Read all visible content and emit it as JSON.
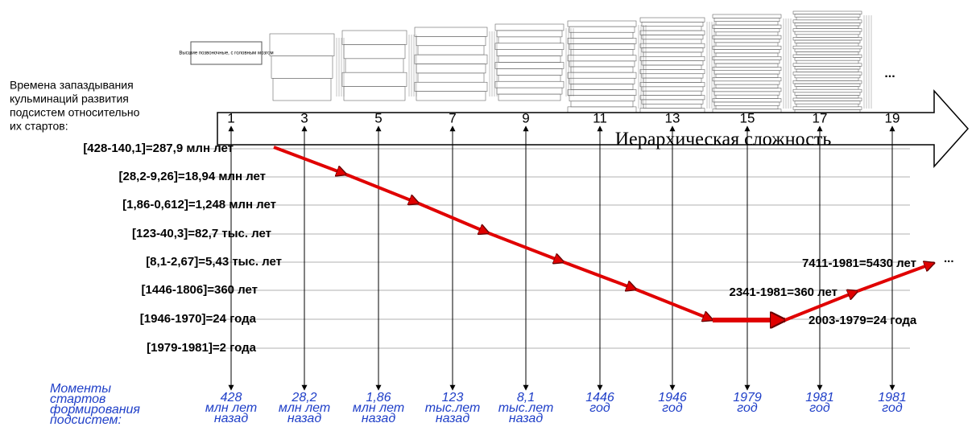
{
  "top_label": "Высшие позвоночные, с головным мозгом",
  "ellipsis_top": "...",
  "left_heading": [
    "Времена запаздывания",
    "кульминаций развития",
    "подсистем относительно",
    "их стартов:"
  ],
  "axis_numbers": [
    "1",
    "3",
    "5",
    "7",
    "9",
    "11",
    "13",
    "15",
    "17",
    "19"
  ],
  "axis_title": "Иерархическая сложность",
  "row_labels": [
    "[428-140,1]=287,9 млн лет",
    "[28,2-9,26]=18,94 млн лет",
    "[1,86-0,612]=1,248 млн лет",
    "[123-40,3]=82,7 тыс. лет",
    "[8,1-2,67]=5,43 тыс. лет",
    "[1446-1806]=360 лет",
    "[1946-1970]=24 года",
    "[1979-1981]=2 года"
  ],
  "right_labels": [
    "7411-1981=5430 лет",
    "2341-1981=360 лет",
    "2003-1979=24 года"
  ],
  "ellipsis_right": "...",
  "bottom_heading": [
    "Моменты",
    "стартов",
    "формирования",
    "подсистем:"
  ],
  "bottom_columns": [
    [
      "428",
      "млн лет",
      "назад"
    ],
    [
      "28,2",
      "млн лет",
      "назад"
    ],
    [
      "1,86",
      "млн лет",
      "назад"
    ],
    [
      "123",
      "тыс.лет",
      "назад"
    ],
    [
      "8,1",
      "тыс.лет",
      "назад"
    ],
    [
      "1446",
      "год"
    ],
    [
      "1946",
      "год"
    ],
    [
      "1979",
      "год"
    ],
    [
      "1981",
      "год"
    ],
    [
      "1981",
      "год"
    ]
  ]
}
